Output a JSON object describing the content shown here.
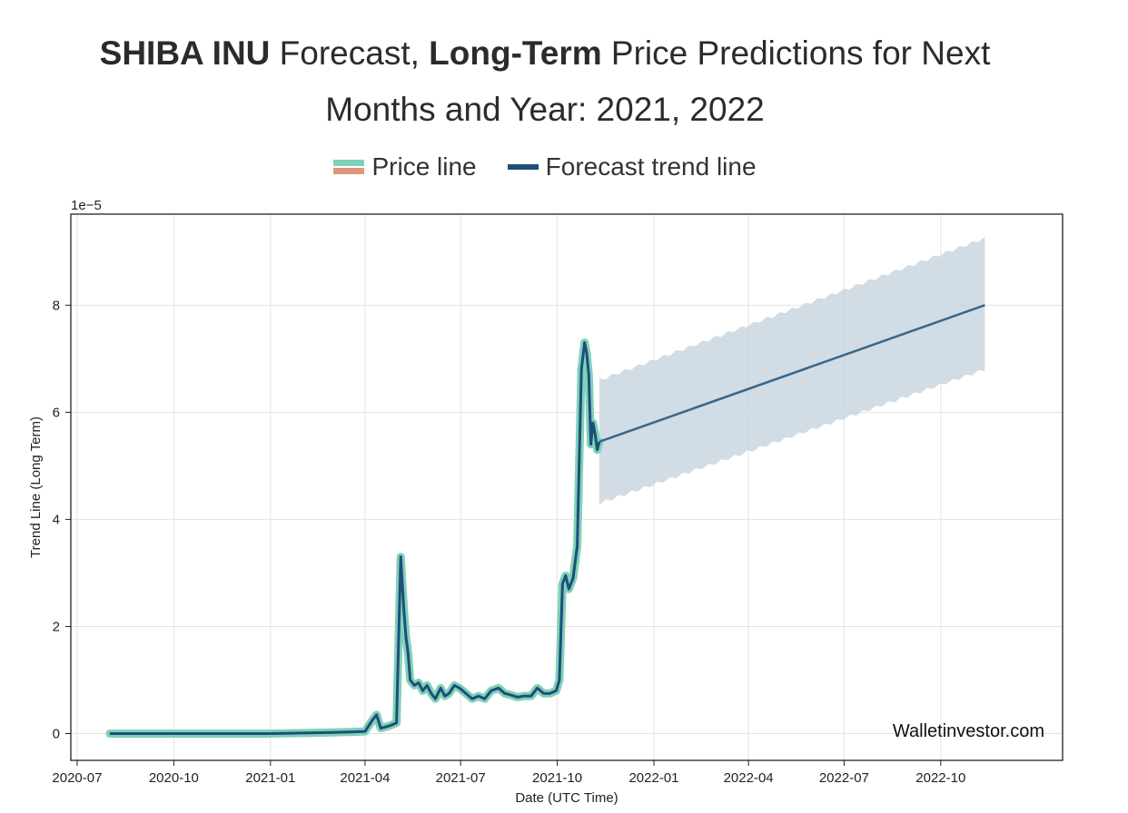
{
  "header": {
    "title_parts": [
      {
        "text": "SHIBA INU",
        "bold": true
      },
      {
        "text": " Forecast, ",
        "bold": false
      },
      {
        "text": "Long-Term",
        "bold": true
      },
      {
        "text": " Price Predictions for Next",
        "bold": false
      }
    ],
    "title_line2": "Months and Year: 2021, 2022"
  },
  "legend": {
    "price_label": "Price line",
    "trend_label": "Forecast trend line"
  },
  "watermark": "Walletinvestor.com",
  "colors": {
    "price_line": "#7fd1b9",
    "price_alt": "#e0967a",
    "trend_line": "#1f4e79",
    "band": "#c9d6e0"
  },
  "chart_data": {
    "type": "line",
    "xlabel": "Date (UTC Time)",
    "ylabel": "Trend Line (Long Term)",
    "y_multiplier_label": "1e−5",
    "x_ticks": [
      "2020-07",
      "2020-10",
      "2021-01",
      "2021-04",
      "2021-07",
      "2021-10",
      "2022-01",
      "2022-04",
      "2022-07",
      "2022-10"
    ],
    "y_ticks": [
      "0",
      "2",
      "4",
      "6",
      "8"
    ],
    "xlim": [
      "2020-06-25",
      "2023-01-25"
    ],
    "ylim": [
      -0.5,
      9.7
    ],
    "grid": true,
    "series": [
      {
        "name": "Price line",
        "x": [
          "2020-08-01",
          "2020-10-01",
          "2021-01-01",
          "2021-03-01",
          "2021-04-01",
          "2021-04-08",
          "2021-04-12",
          "2021-04-16",
          "2021-04-25",
          "2021-05-01",
          "2021-05-05",
          "2021-05-08",
          "2021-05-10",
          "2021-05-12",
          "2021-05-14",
          "2021-05-18",
          "2021-05-22",
          "2021-05-26",
          "2021-05-30",
          "2021-06-03",
          "2021-06-07",
          "2021-06-12",
          "2021-06-16",
          "2021-06-20",
          "2021-06-25",
          "2021-06-30",
          "2021-07-06",
          "2021-07-12",
          "2021-07-18",
          "2021-07-24",
          "2021-07-30",
          "2021-08-06",
          "2021-08-12",
          "2021-08-18",
          "2021-08-24",
          "2021-08-30",
          "2021-09-06",
          "2021-09-12",
          "2021-09-18",
          "2021-09-24",
          "2021-09-30",
          "2021-10-03",
          "2021-10-06",
          "2021-10-09",
          "2021-10-12",
          "2021-10-16",
          "2021-10-20",
          "2021-10-24",
          "2021-10-27",
          "2021-10-29",
          "2021-10-31",
          "2021-11-02",
          "2021-11-04",
          "2021-11-06",
          "2021-11-08",
          "2021-11-10"
        ],
        "values": [
          0.0,
          0.0,
          0.0,
          0.02,
          0.04,
          0.25,
          0.35,
          0.1,
          0.15,
          0.2,
          3.3,
          2.3,
          1.8,
          1.5,
          1.0,
          0.9,
          0.95,
          0.8,
          0.9,
          0.75,
          0.65,
          0.85,
          0.7,
          0.75,
          0.9,
          0.85,
          0.75,
          0.65,
          0.7,
          0.65,
          0.8,
          0.85,
          0.75,
          0.72,
          0.68,
          0.7,
          0.7,
          0.85,
          0.75,
          0.75,
          0.8,
          1.0,
          2.8,
          2.95,
          2.7,
          2.9,
          3.5,
          6.8,
          7.3,
          7.1,
          6.7,
          5.4,
          5.8,
          5.6,
          5.3,
          5.45
        ]
      },
      {
        "name": "Forecast trend line",
        "x": [
          "2021-11-10",
          "2022-11-12"
        ],
        "values": [
          5.45,
          8.0
        ],
        "band_upper": [
          6.6,
          9.25
        ],
        "band_lower": [
          4.3,
          6.8
        ]
      }
    ]
  }
}
